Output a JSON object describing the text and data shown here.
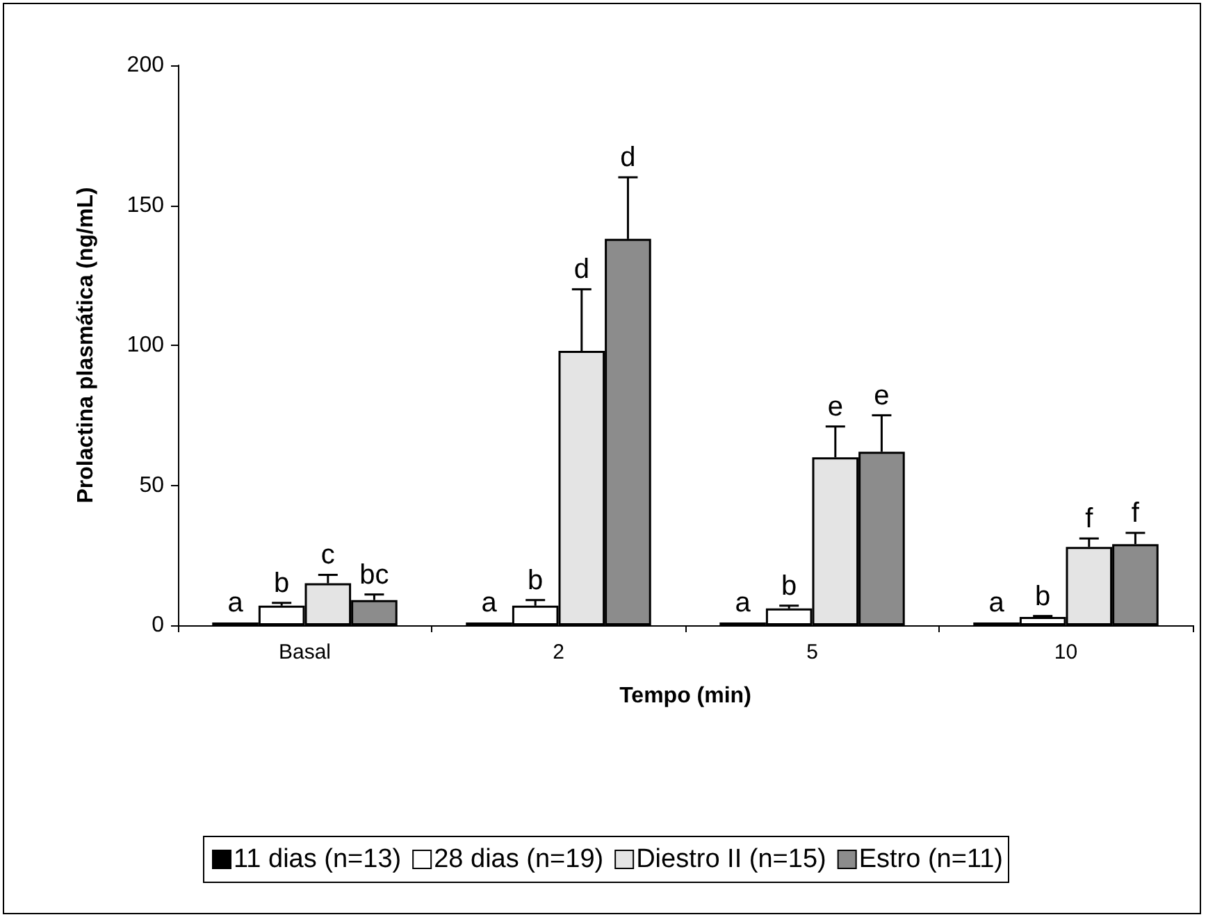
{
  "chart_data": {
    "type": "bar",
    "xlabel": "Tempo (min)",
    "ylabel": "Prolactina plasmática (ng/mL)",
    "categories": [
      "Basal",
      "2",
      "5",
      "10"
    ],
    "series": [
      {
        "name": "11 dias (n=13)",
        "color": "#000000",
        "values": [
          1,
          1,
          1,
          1
        ],
        "value_labels": [
          "a",
          "a",
          "a",
          "a"
        ]
      },
      {
        "name": "28 dias (n=19)",
        "color": "#ffffff",
        "values": [
          7,
          7,
          6,
          3
        ],
        "errors": [
          [
            7,
            8
          ],
          [
            7,
            9
          ],
          [
            6,
            7
          ],
          [
            3,
            3.3
          ]
        ],
        "value_labels": [
          "b",
          "b",
          "b",
          "b"
        ]
      },
      {
        "name": "Diestro II (n=15)",
        "color": "#e4e4e4",
        "values": [
          15,
          98,
          60,
          28
        ],
        "errors": [
          [
            15,
            18
          ],
          [
            98,
            120
          ],
          [
            60,
            71
          ],
          [
            28,
            31
          ]
        ],
        "value_labels": [
          "c",
          "d",
          "e",
          "f"
        ]
      },
      {
        "name": "Estro (n=11)",
        "color": "#8c8c8c",
        "values": [
          9,
          138,
          62,
          29
        ],
        "errors": [
          [
            9,
            11
          ],
          [
            138,
            160
          ],
          [
            62,
            75
          ],
          [
            29,
            33
          ]
        ],
        "value_labels": [
          "bc",
          "d",
          "e",
          "f"
        ]
      }
    ],
    "ylim": [
      0,
      200
    ],
    "yticks": [
      0,
      50,
      100,
      150,
      200
    ],
    "grid": false,
    "legend": "bottom"
  }
}
